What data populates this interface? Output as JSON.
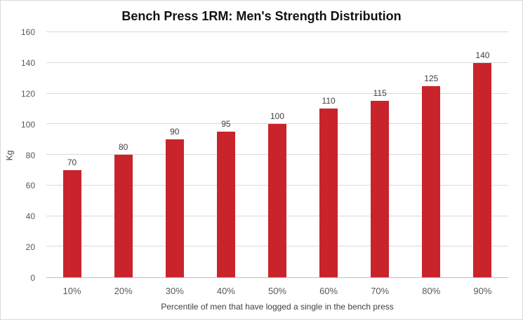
{
  "chart_data": {
    "type": "bar",
    "title": "Bench Press 1RM: Men's Strength Distribution",
    "xlabel": "Percentile of men that have logged a single in the bench press",
    "ylabel": "Kg",
    "categories": [
      "10%",
      "20%",
      "30%",
      "40%",
      "50%",
      "60%",
      "70%",
      "80%",
      "90%"
    ],
    "values": [
      70,
      80,
      90,
      95,
      100,
      110,
      115,
      125,
      140
    ],
    "ylim": [
      0,
      160
    ],
    "yticks": [
      0,
      20,
      40,
      60,
      80,
      100,
      120,
      140,
      160
    ],
    "bar_color": "#c9242c",
    "grid": true,
    "legend": false
  }
}
